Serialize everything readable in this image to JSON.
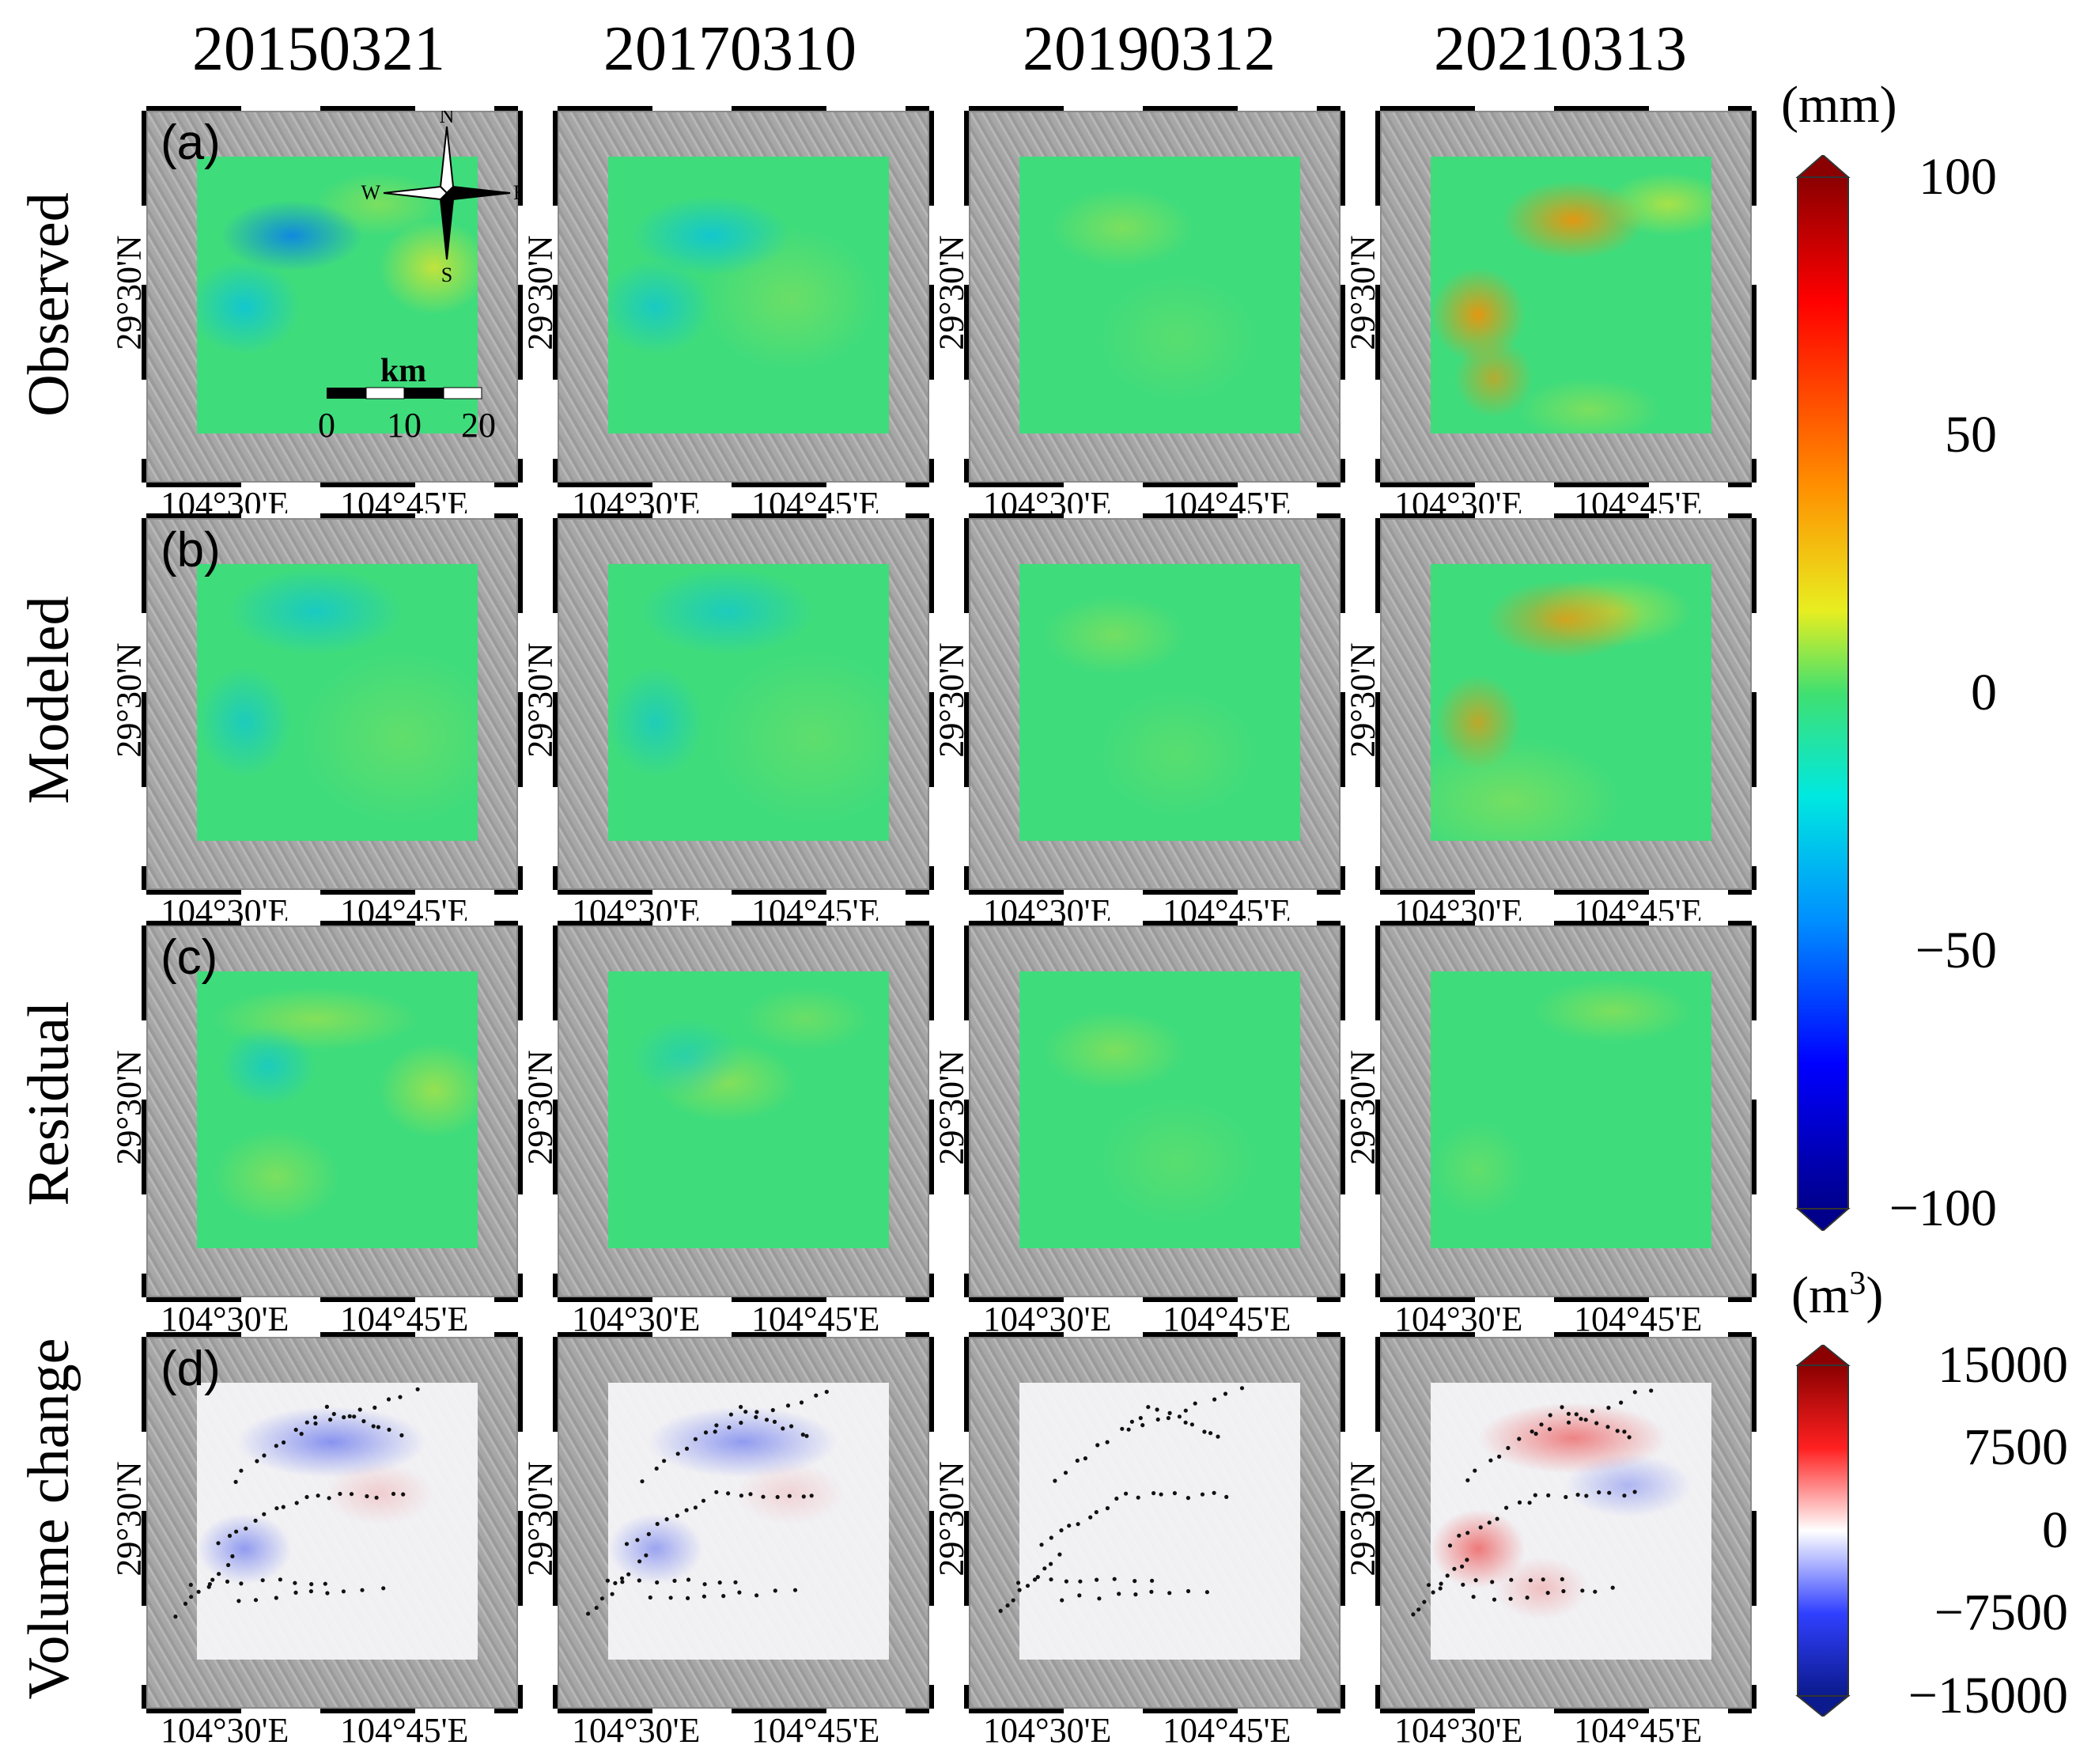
{
  "columns": [
    "20150321",
    "20170310",
    "20190312",
    "20210313"
  ],
  "rows": [
    {
      "label": "Observed",
      "panel_label": "(a)"
    },
    {
      "label": "Modeled",
      "panel_label": "(b)"
    },
    {
      "label": "Residual",
      "panel_label": "(c)"
    },
    {
      "label": "Volume change",
      "panel_label": "(d)"
    }
  ],
  "latitude_label": "29°30'N",
  "longitude_labels": [
    "104°30'E",
    "104°45'E"
  ],
  "compass": {
    "n": "N",
    "s": "S",
    "e": "E",
    "w": "W"
  },
  "scalebar": {
    "unit": "km",
    "ticks": [
      "0",
      "10",
      "20"
    ]
  },
  "colors": {
    "deformation_low": "#00008b",
    "deformation_mid": "#00d0a0",
    "deformation_high": "#8b0000",
    "volume_low": "#0b1a8c",
    "volume_mid": "#ffffff",
    "volume_high": "#8b0000",
    "background": "#a7a7a7"
  },
  "colorbar_deformation": {
    "unit": "(mm)",
    "ticks": [
      "100",
      "50",
      "0",
      "−50",
      "−100"
    ],
    "range": [
      -100,
      100
    ]
  },
  "colorbar_volume": {
    "unit_base": "(m",
    "unit_sup": "3",
    "unit_close": ")",
    "ticks": [
      "15000",
      "7500",
      "0",
      "−7500",
      "−15000"
    ],
    "range": [
      -15000,
      15000
    ]
  }
}
